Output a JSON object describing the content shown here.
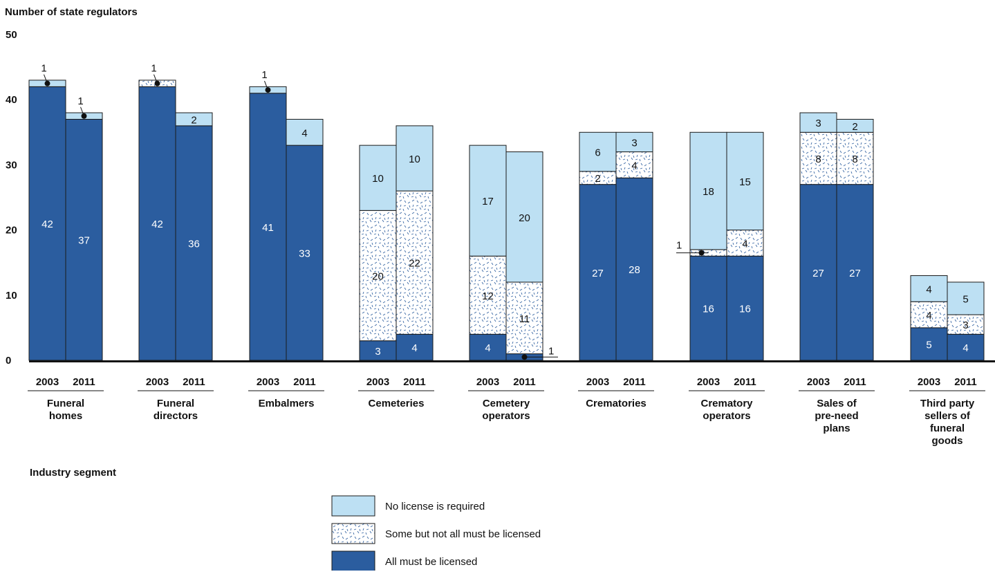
{
  "chart_data": {
    "type": "bar",
    "stacked": true,
    "ylabel": "Number of state regulators",
    "xlabel": "Industry segment",
    "ylim": [
      0,
      50
    ],
    "yticks": [
      0,
      10,
      20,
      30,
      40,
      50
    ],
    "grid": false,
    "legend_position": "bottom-center",
    "colors": {
      "no_license": "#bde0f3",
      "some": "#ffffff",
      "some_pattern": "#2d5d9c",
      "all": "#2b5d9f",
      "outline": "#1a1a1a"
    },
    "legend": [
      {
        "key": "no",
        "label": "No license is required"
      },
      {
        "key": "some",
        "label": "Some but not all must be licensed"
      },
      {
        "key": "all",
        "label": "All must be licensed"
      }
    ],
    "groups": [
      {
        "label": "Funeral homes",
        "bars": [
          {
            "year": "2003",
            "all": 42,
            "some": 0,
            "no": 1
          },
          {
            "year": "2011",
            "all": 37,
            "some": 0,
            "no": 1
          }
        ]
      },
      {
        "label": "Funeral directors",
        "bars": [
          {
            "year": "2003",
            "all": 42,
            "some": 1,
            "no": 0
          },
          {
            "year": "2011",
            "all": 36,
            "some": 0,
            "no": 2
          }
        ]
      },
      {
        "label": "Embalmers",
        "bars": [
          {
            "year": "2003",
            "all": 41,
            "some": 0,
            "no": 1
          },
          {
            "year": "2011",
            "all": 33,
            "some": 0,
            "no": 4
          }
        ]
      },
      {
        "label": "Cemeteries",
        "bars": [
          {
            "year": "2003",
            "all": 3,
            "some": 20,
            "no": 10
          },
          {
            "year": "2011",
            "all": 4,
            "some": 22,
            "no": 10
          }
        ]
      },
      {
        "label": "Cemetery operators",
        "bars": [
          {
            "year": "2003",
            "all": 4,
            "some": 12,
            "no": 17
          },
          {
            "year": "2011",
            "all": 1,
            "some": 11,
            "no": 20
          }
        ]
      },
      {
        "label": "Crematories",
        "bars": [
          {
            "year": "2003",
            "all": 27,
            "some": 2,
            "no": 6
          },
          {
            "year": "2011",
            "all": 28,
            "some": 4,
            "no": 3
          }
        ]
      },
      {
        "label": "Crematory operators",
        "bars": [
          {
            "year": "2003",
            "all": 16,
            "some": 1,
            "no": 18
          },
          {
            "year": "2011",
            "all": 16,
            "some": 4,
            "no": 15
          }
        ]
      },
      {
        "label": "Sales of pre-need plans",
        "bars": [
          {
            "year": "2003",
            "all": 27,
            "some": 8,
            "no": 3
          },
          {
            "year": "2011",
            "all": 27,
            "some": 8,
            "no": 2
          }
        ]
      },
      {
        "label": "Third party sellers of funeral goods",
        "bars": [
          {
            "year": "2003",
            "all": 5,
            "some": 4,
            "no": 4
          },
          {
            "year": "2011",
            "all": 4,
            "some": 3,
            "no": 5
          }
        ]
      }
    ]
  }
}
